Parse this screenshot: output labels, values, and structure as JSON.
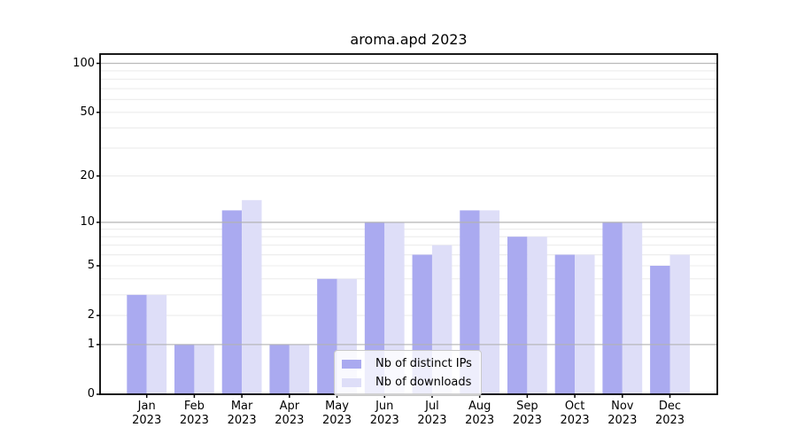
{
  "chart_data": {
    "type": "bar",
    "title": "aroma.apd 2023",
    "categories": [
      "Jan 2023",
      "Feb 2023",
      "Mar 2023",
      "Apr 2023",
      "May 2023",
      "Jun 2023",
      "Jul 2023",
      "Aug 2023",
      "Sep 2023",
      "Oct 2023",
      "Nov 2023",
      "Dec 2023"
    ],
    "series": [
      {
        "name": "Nb of distinct IPs",
        "color": "#aaaaf0",
        "values": [
          3,
          1,
          12,
          1,
          4,
          10,
          6,
          12,
          8,
          6,
          10,
          5
        ]
      },
      {
        "name": "Nb of downloads",
        "color": "#dedef8",
        "values": [
          3,
          1,
          14,
          1,
          4,
          10,
          7,
          12,
          8,
          6,
          10,
          6
        ]
      }
    ],
    "xlabel": "",
    "ylabel": "",
    "y_scale": "log1p",
    "ylim": [
      0,
      114
    ],
    "y_ticks": [
      0,
      1,
      2,
      5,
      10,
      20,
      50,
      100
    ],
    "grid": {
      "on": true,
      "minor": [
        2,
        3,
        4,
        5,
        6,
        7,
        8,
        9,
        20,
        30,
        40,
        50,
        60,
        70,
        80,
        90
      ],
      "major": [
        1,
        10,
        100
      ]
    },
    "legend_position": "lower center",
    "colors": {
      "grid_minor": "#ececec",
      "grid_major": "#b3b3b3",
      "spine": "#000000",
      "text": "#000000",
      "background": "#ffffff"
    }
  }
}
